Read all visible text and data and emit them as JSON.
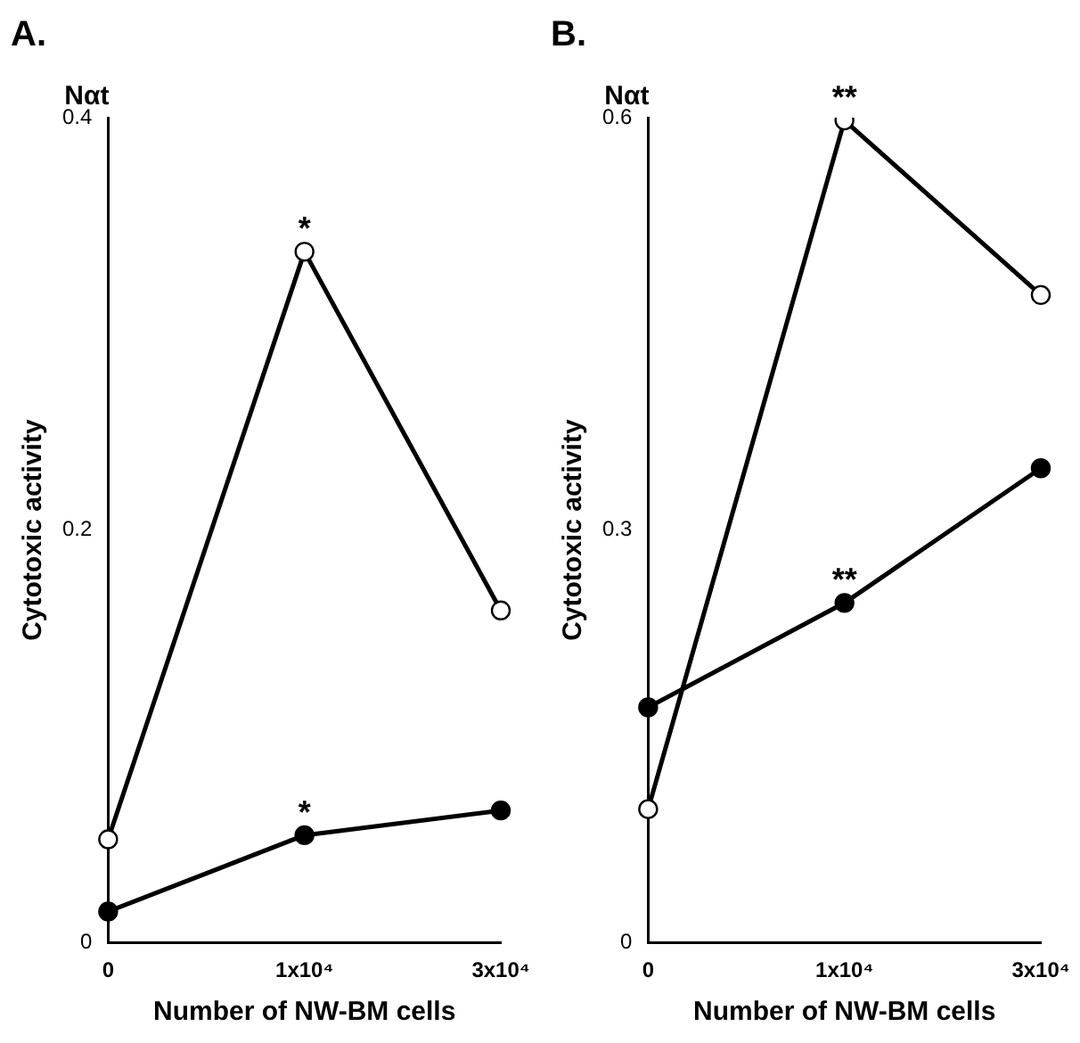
{
  "chart_data": [
    {
      "type": "line",
      "title": "A.",
      "xlabel": "Number of NW-BM cells",
      "ylabel": "Cytotoxic activity",
      "categories": [
        "0",
        "1x10⁴",
        "3x10⁴"
      ],
      "ylim": [
        0,
        0.4
      ],
      "yticks": [
        0,
        0.2,
        0.4
      ],
      "grid": false,
      "legend": false,
      "marker": "circle",
      "series": [
        {
          "color": "#000000",
          "values": [
            0.05,
            0.335,
            0.161
          ]
        },
        {
          "color": "#000000",
          "values": [
            0.015,
            0.052,
            0.064
          ]
        }
      ],
      "annotations": [
        "Nαt",
        {
          "text": "*",
          "x": "1x10⁴",
          "y": 0.335
        },
        {
          "text": "*",
          "x": "1x10⁴",
          "y": 0.052
        }
      ]
    },
    {
      "type": "line",
      "title": "B.",
      "xlabel": "Number of NW-BM cells",
      "ylabel": "Cytotoxic activity",
      "categories": [
        "0",
        "1x10⁴",
        "3x10⁴"
      ],
      "ylim": [
        0,
        0.6
      ],
      "yticks": [
        0,
        0.3,
        0.6
      ],
      "grid": false,
      "legend": false,
      "marker": "circle",
      "series": [
        {
          "color": "#000000",
          "values": [
            0.097,
            0.598,
            0.471
          ]
        },
        {
          "color": "#000000",
          "values": [
            0.171,
            0.247,
            0.345
          ]
        }
      ],
      "annotations": [
        "Nαt",
        {
          "text": "**",
          "x": "1x10⁴",
          "y": 0.598
        },
        {
          "text": "**",
          "x": "1x10⁴",
          "y": 0.247
        }
      ]
    }
  ]
}
